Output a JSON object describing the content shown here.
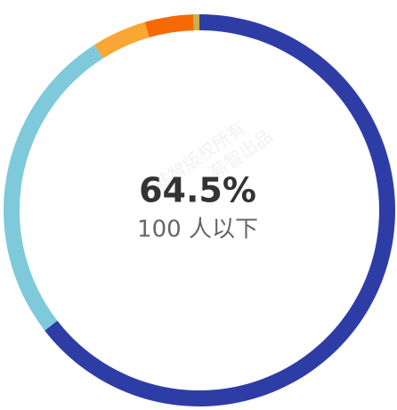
{
  "chart_data": {
    "type": "donut",
    "categories": [
      "100 人以下",
      null,
      null,
      null,
      null
    ],
    "values": [
      64.5,
      26.5,
      4.5,
      4.0,
      0.5
    ],
    "value_labels": [
      "64.5%",
      null,
      null,
      null,
      null
    ],
    "colors": [
      "#2e3da6",
      "#7ecadb",
      "#f8a634",
      "#f56a05",
      "#c9b24a"
    ],
    "watermarks": [
      "薪智版权所有",
      "薪智出品"
    ]
  }
}
